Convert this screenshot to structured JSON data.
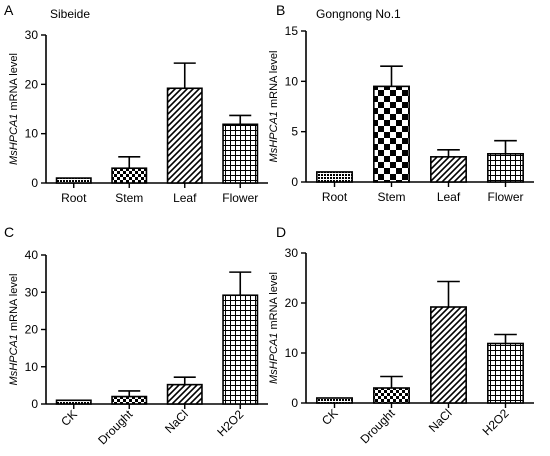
{
  "figure": {
    "panels": [
      "A",
      "B",
      "C",
      "D"
    ]
  },
  "chart_data": [
    {
      "panel": "A",
      "type": "bar",
      "title": "Sibeide",
      "ylabel_italic": "MsHPCA1",
      "ylabel_rest": " mRNA level",
      "categories": [
        "Root",
        "Stem",
        "Leaf",
        "Flower"
      ],
      "values": [
        1,
        3,
        19.2,
        11.9
      ],
      "errors": [
        0,
        2.3,
        5.1,
        1.8
      ],
      "patterns": [
        "dense",
        "check-small",
        "diag",
        "grid"
      ],
      "ylim": [
        0,
        30
      ],
      "yticks": [
        "0",
        "10",
        "20",
        "30"
      ],
      "rotated_xlabels": false
    },
    {
      "panel": "B",
      "type": "bar",
      "title": "Gongnong No.1",
      "ylabel_italic": "MsHPCA1",
      "ylabel_rest": " mRNA level",
      "categories": [
        "Root",
        "Stem",
        "Leaf",
        "Flower"
      ],
      "values": [
        1,
        9.5,
        2.5,
        2.8
      ],
      "errors": [
        0,
        2.0,
        0.7,
        1.3
      ],
      "patterns": [
        "dense",
        "check-large",
        "diag",
        "grid"
      ],
      "ylim": [
        0,
        15
      ],
      "yticks": [
        "0",
        "5",
        "10",
        "15"
      ],
      "rotated_xlabels": false
    },
    {
      "panel": "C",
      "type": "bar",
      "title": "",
      "ylabel_italic": "MsHPCA1",
      "ylabel_rest": " mRNA level",
      "categories": [
        "CK",
        "Drought",
        "NaCl",
        "H2O2"
      ],
      "values": [
        1,
        2,
        5.2,
        29.2
      ],
      "errors": [
        0,
        1.5,
        2.0,
        6.2
      ],
      "patterns": [
        "dense",
        "check-small",
        "diag",
        "grid"
      ],
      "ylim": [
        0,
        40
      ],
      "yticks": [
        "0",
        "10",
        "20",
        "30",
        "40"
      ],
      "rotated_xlabels": true
    },
    {
      "panel": "D",
      "type": "bar",
      "title": "",
      "ylabel_italic": "MsHPCA1",
      "ylabel_rest": " mRNA level",
      "categories": [
        "CK",
        "Drought",
        "NaCl",
        "H2O2"
      ],
      "values": [
        1,
        3,
        19.2,
        11.9
      ],
      "errors": [
        0,
        2.3,
        5.1,
        1.8
      ],
      "patterns": [
        "dense",
        "check-small",
        "diag",
        "grid"
      ],
      "ylim": [
        0,
        30
      ],
      "yticks": [
        "0",
        "10",
        "20",
        "30"
      ],
      "rotated_xlabels": true
    }
  ]
}
